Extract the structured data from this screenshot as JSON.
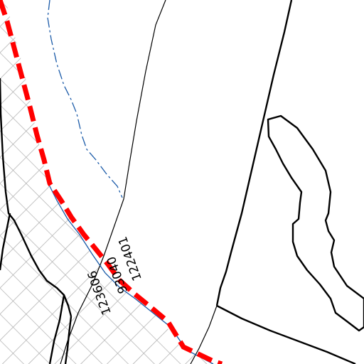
{
  "map": {
    "parcel_labels": [
      "122401",
      "93040",
      "123606"
    ],
    "colors": {
      "background": "#ffffff",
      "boundary_red": "#ff0000",
      "water_blue": "#1a5aa8",
      "line_black": "#000000",
      "hatch_grey": "#b4b4b4"
    },
    "legend_note": ""
  }
}
